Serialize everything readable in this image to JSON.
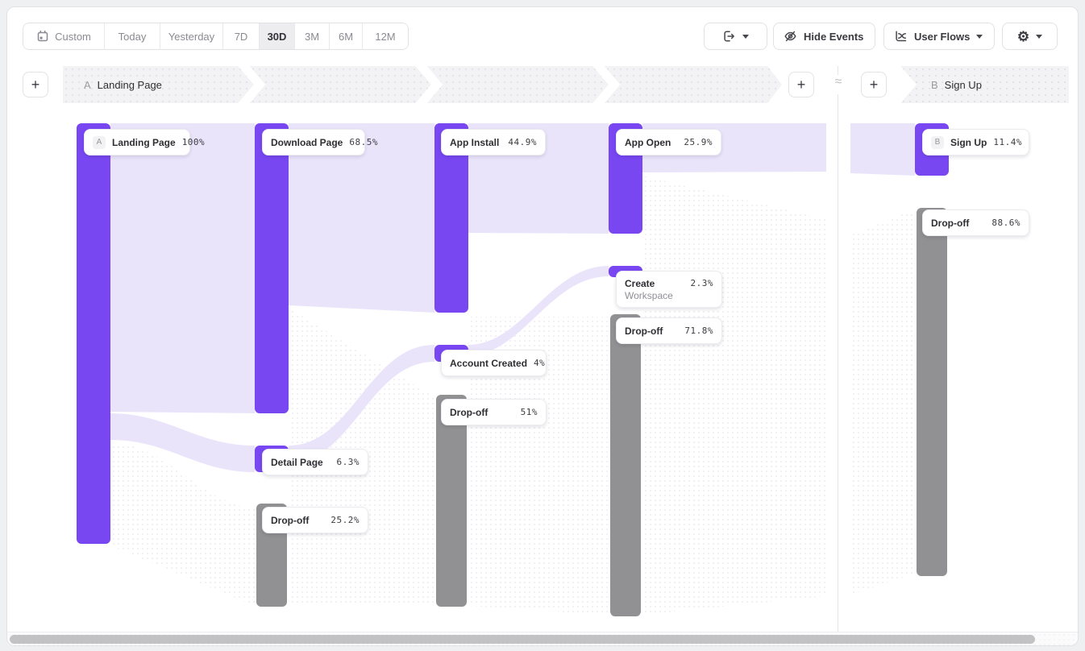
{
  "toolbar": {
    "date_presets": [
      "Custom",
      "Today",
      "Yesterday",
      "7D",
      "30D",
      "3M",
      "6M",
      "12M"
    ],
    "selected_preset": "30D",
    "hide_events_label": "Hide Events",
    "view_selector_label": "User Flows"
  },
  "steps_header": {
    "step_a_badge": "A",
    "step_a_label": "Landing Page",
    "step_b_badge": "B",
    "step_b_label": "Sign Up",
    "approx_symbol": "≈",
    "add_step_symbol": "+"
  },
  "flow": {
    "nodes": [
      {
        "id": "landing",
        "badge": "A",
        "label": "Landing Page",
        "pct": "100%",
        "kind": "step"
      },
      {
        "id": "download",
        "label": "Download Page",
        "pct": "68.5%",
        "kind": "step"
      },
      {
        "id": "detail",
        "label": "Detail Page",
        "pct": "6.3%",
        "kind": "step"
      },
      {
        "id": "dropoff-2",
        "label": "Drop-off",
        "pct": "25.2%",
        "kind": "dropoff"
      },
      {
        "id": "install",
        "label": "App Install",
        "pct": "44.9%",
        "kind": "step"
      },
      {
        "id": "account",
        "label": "Account Created",
        "pct": "4%",
        "kind": "step"
      },
      {
        "id": "dropoff-3",
        "label": "Drop-off",
        "pct": "51%",
        "kind": "dropoff"
      },
      {
        "id": "appopen",
        "label": "App Open",
        "pct": "25.9%",
        "kind": "step"
      },
      {
        "id": "create",
        "label": "Create",
        "label2": "Workspace",
        "pct": "2.3%",
        "kind": "step"
      },
      {
        "id": "dropoff-4",
        "label": "Drop-off",
        "pct": "71.8%",
        "kind": "dropoff"
      },
      {
        "id": "signup",
        "badge": "B",
        "label": "Sign Up",
        "pct": "11.4%",
        "kind": "step"
      },
      {
        "id": "dropoff-5",
        "label": "Drop-off",
        "pct": "88.6%",
        "kind": "dropoff"
      }
    ]
  },
  "colors": {
    "accent": "#7847F2",
    "flow_band": "#EAE4FB",
    "dropoff": "#919193"
  }
}
